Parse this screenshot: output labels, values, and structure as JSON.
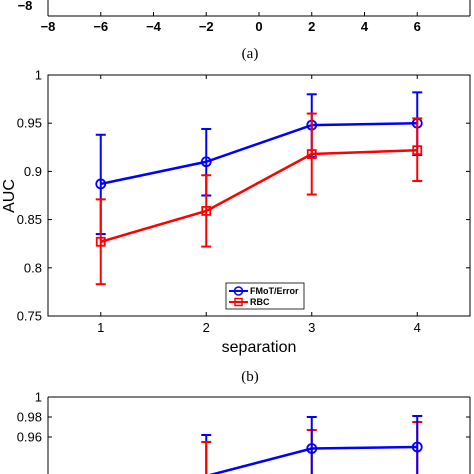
{
  "panels": [
    {
      "caption": "(a)",
      "chart_data": {
        "type": "line",
        "partial": "bottom edge only visible",
        "x_ticks": [
          "−8",
          "−6",
          "−4",
          "−2",
          "0",
          "2",
          "4",
          "6"
        ],
        "y_ticks": [
          "−8"
        ],
        "xlim": [
          -8,
          8
        ]
      }
    },
    {
      "caption": "(b)",
      "chart_data": {
        "type": "line",
        "xlabel": "separation",
        "ylabel": "AUC",
        "xlim": [
          0.5,
          4.5
        ],
        "ylim": [
          0.75,
          1.0
        ],
        "x_ticks": [
          "1",
          "2",
          "3",
          "4"
        ],
        "y_ticks": [
          "0.75",
          "0.8",
          "0.85",
          "0.9",
          "0.95",
          "1"
        ],
        "legend_position": "bottom-center",
        "grid": false,
        "series": [
          {
            "name": "FMoT/Error",
            "color": "#0000ff",
            "marker": "circle",
            "x": [
              1,
              2,
              3,
              4
            ],
            "y": [
              0.887,
              0.91,
              0.948,
              0.95
            ],
            "err_low": [
              0.835,
              0.875,
              0.915,
              0.917
            ],
            "err_high": [
              0.938,
              0.944,
              0.98,
              0.982
            ]
          },
          {
            "name": "RBC",
            "color": "#ff0000",
            "marker": "square",
            "x": [
              1,
              2,
              3,
              4
            ],
            "y": [
              0.827,
              0.859,
              0.918,
              0.922
            ],
            "err_low": [
              0.783,
              0.822,
              0.876,
              0.89
            ],
            "err_high": [
              0.871,
              0.896,
              0.96,
              0.955
            ]
          }
        ]
      }
    },
    {
      "caption": "",
      "chart_data": {
        "type": "line",
        "partial": "top portion only visible",
        "ylim": [
          0.95,
          1.0
        ],
        "y_ticks": [
          "1",
          "0.98",
          "0.96"
        ],
        "series": [
          {
            "name": "FMoT/Error",
            "color": "#0000ff",
            "x": [
              3,
              4
            ],
            "y": [
              0.9485,
              0.95
            ],
            "err_high": [
              0.98,
              0.981
            ]
          },
          {
            "name": "RBC",
            "color": "#ff0000",
            "x": [
              3,
              4
            ],
            "err_high": [
              0.967,
              0.975
            ]
          }
        ]
      }
    }
  ]
}
